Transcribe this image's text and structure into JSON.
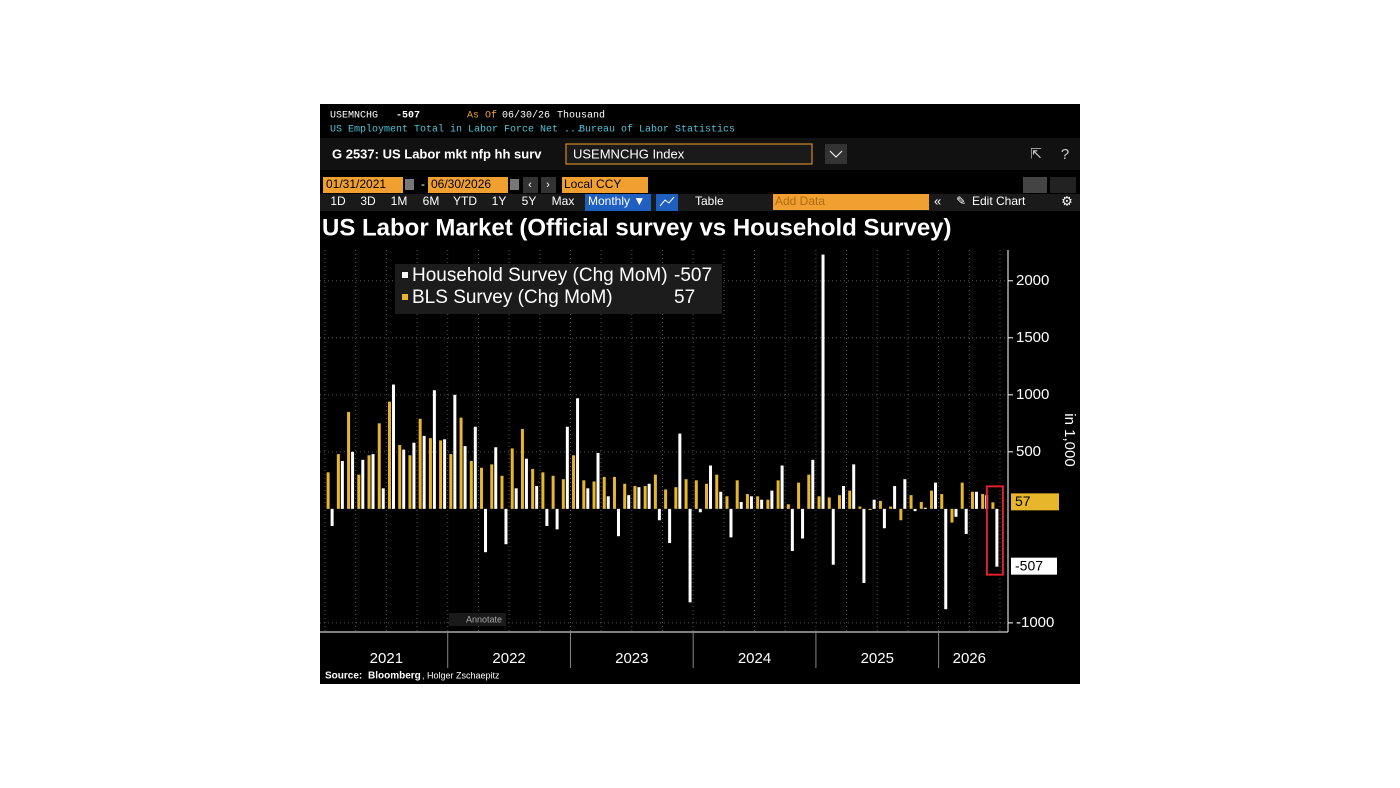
{
  "ui": {
    "header": {
      "ticker": "USEMNCHG",
      "as_of_label": "As Of",
      "as_of": "06/30/26",
      "unit": "Thousand",
      "description": "US Employment Total in Labor Force Net ...",
      "source_org": "Bureau of Labor Statistics"
    },
    "chart_name": "G 2537: US Labor mkt nfp hh surv",
    "security": "USEMNCHG Index",
    "start_date": "01/31/2021",
    "end_date": "06/30/2026",
    "currency": "Local CCY",
    "range_buttons": [
      "1D",
      "3D",
      "1M",
      "6M",
      "YTD",
      "1Y",
      "5Y",
      "Max"
    ],
    "frequency": "Monthly ▼",
    "table_button": "Table",
    "add_data": "Add Data",
    "edit_chart": "Edit Chart",
    "annotate": "Annotate",
    "axis_unit": "in 1,000",
    "source_label": "Source:",
    "source": "Bloomberg",
    "source_author": ", Holger Zschaepitz"
  },
  "chart_data": {
    "type": "bar",
    "title": "US Labor Market (Official survey vs Household Survey)",
    "categories": [
      null,
      null,
      null,
      null,
      null,
      null,
      "2021",
      null,
      null,
      null,
      null,
      null,
      null,
      null,
      null,
      null,
      null,
      null,
      "2022",
      null,
      null,
      null,
      null,
      null,
      null,
      null,
      null,
      null,
      null,
      null,
      "2023",
      null,
      null,
      null,
      null,
      null,
      null,
      null,
      null,
      null,
      null,
      null,
      "2024",
      null,
      null,
      null,
      null,
      null,
      null,
      null,
      null,
      null,
      null,
      null,
      "2025",
      null,
      null,
      null,
      null,
      null,
      null,
      null,
      null,
      "2026",
      null,
      null
    ],
    "series": [
      {
        "name": "Household Survey (Chg MoM)",
        "color": "#ffffff",
        "values": [
          -150,
          420,
          500,
          430,
          480,
          180,
          1090,
          520,
          580,
          640,
          1040,
          610,
          1000,
          550,
          720,
          -380,
          540,
          -310,
          180,
          440,
          200,
          -150,
          -180,
          720,
          970,
          180,
          490,
          110,
          -240,
          120,
          190,
          220,
          -100,
          -300,
          660,
          -820,
          -30,
          380,
          150,
          -250,
          60,
          110,
          80,
          160,
          380,
          -370,
          -260,
          430,
          2230,
          -490,
          200,
          390,
          -650,
          80,
          -170,
          200,
          260,
          -20,
          10,
          230,
          -880,
          -70,
          -220,
          150,
          120,
          -507
        ]
      },
      {
        "name": "BLS Survey (Chg MoM)",
        "color": "#e8b62a",
        "values": [
          320,
          480,
          850,
          300,
          470,
          750,
          940,
          560,
          470,
          790,
          620,
          600,
          480,
          800,
          420,
          360,
          390,
          290,
          530,
          700,
          350,
          320,
          290,
          260,
          470,
          250,
          240,
          280,
          280,
          220,
          200,
          200,
          300,
          170,
          190,
          260,
          250,
          220,
          300,
          110,
          250,
          130,
          110,
          80,
          250,
          40,
          230,
          300,
          110,
          100,
          120,
          160,
          20,
          -10,
          70,
          20,
          -100,
          120,
          60,
          160,
          130,
          -120,
          230,
          150,
          130,
          57
        ]
      }
    ],
    "ylim": [
      -1080,
      2270
    ],
    "yticks": [
      -1000,
      500,
      1000,
      1500,
      2000
    ],
    "grid": true,
    "legend": "upper left"
  }
}
